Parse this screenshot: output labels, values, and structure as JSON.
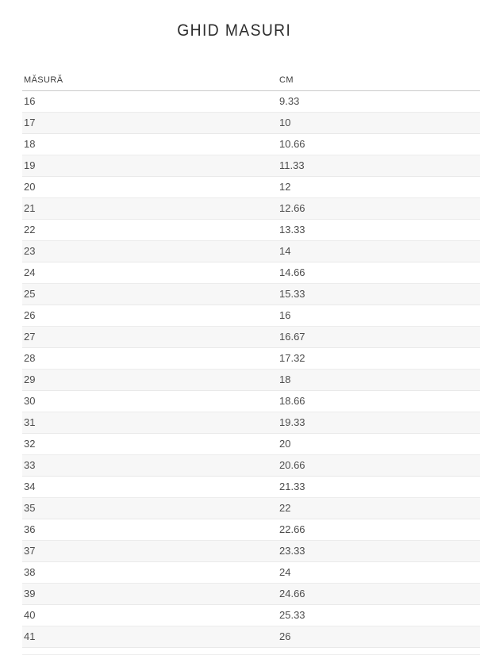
{
  "page": {
    "title": "GHID MASURI"
  },
  "table": {
    "columns": [
      {
        "key": "size",
        "label": "MĂSURĂ"
      },
      {
        "key": "cm",
        "label": "CM"
      }
    ],
    "rows": [
      [
        "16",
        "9.33"
      ],
      [
        "17",
        "10"
      ],
      [
        "18",
        "10.66"
      ],
      [
        "19",
        "11.33"
      ],
      [
        "20",
        "12"
      ],
      [
        "21",
        "12.66"
      ],
      [
        "22",
        "13.33"
      ],
      [
        "23",
        "14"
      ],
      [
        "24",
        "14.66"
      ],
      [
        "25",
        "15.33"
      ],
      [
        "26",
        "16"
      ],
      [
        "27",
        "16.67"
      ],
      [
        "28",
        "17.32"
      ],
      [
        "29",
        "18"
      ],
      [
        "30",
        "18.66"
      ],
      [
        "31",
        "19.33"
      ],
      [
        "32",
        "20"
      ],
      [
        "33",
        "20.66"
      ],
      [
        "34",
        "21.33"
      ],
      [
        "35",
        "22"
      ],
      [
        "36",
        "22.66"
      ],
      [
        "37",
        "23.33"
      ],
      [
        "38",
        "24"
      ],
      [
        "39",
        "24.66"
      ],
      [
        "40",
        "25.33"
      ],
      [
        "41",
        "26"
      ]
    ],
    "colors": {
      "stripe_bg": "#f7f7f7",
      "row_border": "#ececec",
      "header_border": "#c9c9c9",
      "text": "#4d4d4d",
      "title_text": "#2d2d2d"
    }
  }
}
